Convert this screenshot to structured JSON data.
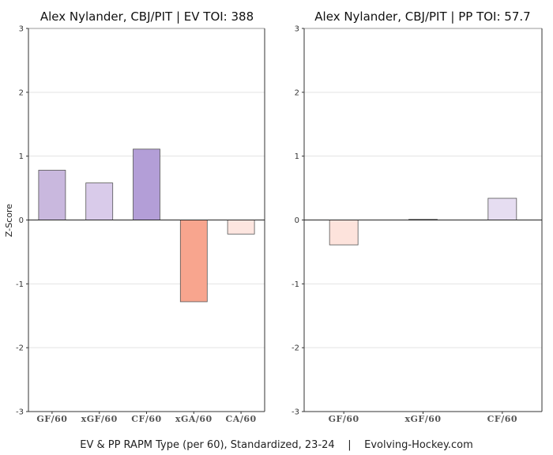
{
  "chart_data": [
    {
      "type": "bar",
      "title": "Alex Nylander, CBJ/PIT  |  EV TOI: 388",
      "ylabel": "Z-Score",
      "ylim": [
        -3,
        3
      ],
      "yticks": [
        -3,
        -2,
        -1,
        0,
        1,
        2,
        3
      ],
      "grid": true,
      "categories": [
        "GF/60",
        "xGF/60",
        "CF/60",
        "xGA/60",
        "CA/60"
      ],
      "values": [
        0.78,
        0.58,
        1.11,
        -1.28,
        -0.22
      ],
      "colors": [
        "#c9b8de",
        "#d9cbea",
        "#b39ed7",
        "#f8a58e",
        "#fde6e0"
      ]
    },
    {
      "type": "bar",
      "title": "Alex Nylander, CBJ/PIT  |  PP TOI: 57.7",
      "ylabel": "",
      "ylim": [
        -3,
        3
      ],
      "yticks": [
        -3,
        -2,
        -1,
        0,
        1,
        2,
        3
      ],
      "grid": true,
      "categories": [
        "GF/60",
        "xGF/60",
        "CF/60"
      ],
      "values": [
        -0.39,
        0.01,
        0.34
      ],
      "colors": [
        "#fde3dc",
        "#f5f0fa",
        "#e6ddf1"
      ]
    }
  ],
  "caption": "EV & PP RAPM Type (per 60), Standardized, 23-24    |    Evolving-Hockey.com"
}
